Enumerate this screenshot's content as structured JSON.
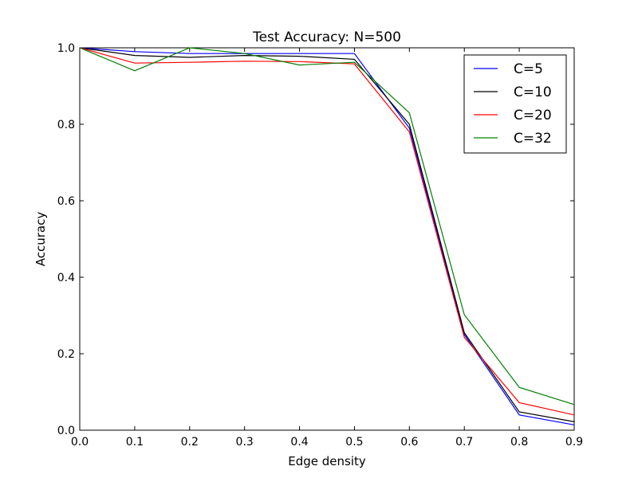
{
  "chart_data": {
    "type": "line",
    "title": "Test Accuracy: N=500",
    "xlabel": "Edge density",
    "ylabel": "Accuracy",
    "xlim": [
      0.0,
      0.9
    ],
    "ylim": [
      0.0,
      1.0
    ],
    "xticks": [
      "0.0",
      "0.1",
      "0.2",
      "0.3",
      "0.4",
      "0.5",
      "0.6",
      "0.7",
      "0.8",
      "0.9"
    ],
    "yticks": [
      "0.0",
      "0.2",
      "0.4",
      "0.6",
      "0.8",
      "1.0"
    ],
    "x": [
      0.0,
      0.1,
      0.2,
      0.3,
      0.4,
      0.5,
      0.6,
      0.7,
      0.8,
      0.9
    ],
    "grid": false,
    "legend_position": "top-right",
    "series": [
      {
        "name": "C=5",
        "color": "#0000ff",
        "values": [
          1.0,
          0.99,
          0.985,
          0.985,
          0.985,
          0.985,
          0.79,
          0.25,
          0.04,
          0.014
        ]
      },
      {
        "name": "C=10",
        "color": "#000000",
        "values": [
          1.0,
          0.98,
          0.975,
          0.98,
          0.978,
          0.97,
          0.8,
          0.255,
          0.048,
          0.022
        ]
      },
      {
        "name": "C=20",
        "color": "#ff0000",
        "values": [
          1.0,
          0.96,
          0.962,
          0.965,
          0.964,
          0.958,
          0.78,
          0.243,
          0.072,
          0.04
        ]
      },
      {
        "name": "C=32",
        "color": "#008000",
        "values": [
          1.0,
          0.94,
          1.0,
          0.985,
          0.955,
          0.962,
          0.83,
          0.302,
          0.112,
          0.067
        ]
      }
    ]
  }
}
